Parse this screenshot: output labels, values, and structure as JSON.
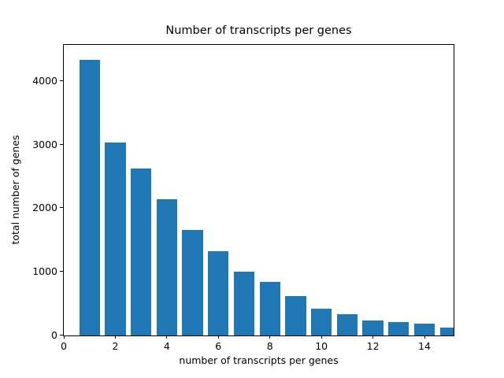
{
  "chart_data": {
    "type": "bar",
    "title": "Number of transcripts per genes",
    "xlabel": "number of transcripts per genes",
    "ylabel": "total number of genes",
    "x": [
      1,
      2,
      3,
      4,
      5,
      6,
      7,
      8,
      9,
      10,
      11,
      12,
      13,
      14,
      15
    ],
    "values": [
      4350,
      3040,
      2630,
      2150,
      1670,
      1330,
      1000,
      840,
      620,
      420,
      340,
      230,
      210,
      190,
      120
    ],
    "bar_color": "#1f77b4",
    "bar_width": 0.8,
    "xticks": [
      0,
      2,
      4,
      6,
      8,
      10,
      12,
      14
    ],
    "yticks": [
      0,
      1000,
      2000,
      3000,
      4000
    ],
    "xlim": [
      0,
      15.1
    ],
    "ylim": [
      0,
      4570
    ],
    "grid": false,
    "legend": null,
    "text_color": "#000000",
    "spine_color": "#000000"
  }
}
